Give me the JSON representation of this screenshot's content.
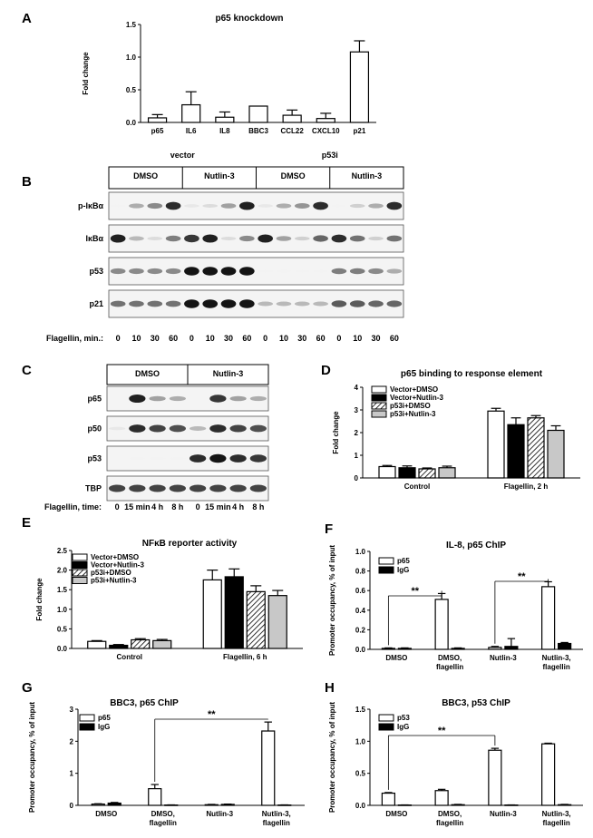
{
  "panels": {
    "A": "A",
    "B": "B",
    "C": "C",
    "D": "D",
    "E": "E",
    "F": "F",
    "G": "G",
    "H": "H"
  },
  "blot_B": {
    "group_labels": [
      "vector",
      "p53i"
    ],
    "treatments": [
      "DMSO",
      "Nutlin-3",
      "DMSO",
      "Nutlin-3"
    ],
    "rows": [
      "p-IκBα",
      "IκBα",
      "p53",
      "p21"
    ],
    "flagellin_label": "Flagellin, min.:",
    "lanes": [
      "0",
      "10",
      "30",
      "60",
      "0",
      "10",
      "30",
      "60",
      "0",
      "10",
      "30",
      "60",
      "0",
      "10",
      "30",
      "60"
    ],
    "intensity": {
      "p-IκBα": [
        0.05,
        0.35,
        0.5,
        0.9,
        0.1,
        0.15,
        0.4,
        0.95,
        0.1,
        0.35,
        0.45,
        0.9,
        0.05,
        0.2,
        0.35,
        0.9
      ],
      "IκBα": [
        0.95,
        0.3,
        0.15,
        0.55,
        0.85,
        0.95,
        0.15,
        0.5,
        0.95,
        0.4,
        0.2,
        0.65,
        0.9,
        0.6,
        0.2,
        0.6
      ],
      "p53": [
        0.5,
        0.5,
        0.5,
        0.5,
        1,
        1,
        1,
        1,
        0.05,
        0.05,
        0.05,
        0.05,
        0.55,
        0.55,
        0.5,
        0.35
      ],
      "p21": [
        0.6,
        0.6,
        0.6,
        0.6,
        1,
        1,
        1,
        1,
        0.3,
        0.3,
        0.3,
        0.3,
        0.7,
        0.7,
        0.65,
        0.65
      ]
    }
  },
  "blot_C": {
    "treatments": [
      "DMSO",
      "Nutlin-3"
    ],
    "rows": [
      "p65",
      "p50",
      "p53",
      "TBP"
    ],
    "flagellin_label": "Flagellin, time:",
    "lanes": [
      "0",
      "15 min",
      "4 h",
      "8 h",
      "0",
      "15 min",
      "4 h",
      "8 h"
    ],
    "intensity": {
      "p65": [
        0.02,
        0.95,
        0.4,
        0.35,
        0.02,
        0.85,
        0.4,
        0.35
      ],
      "p50": [
        0.1,
        0.9,
        0.8,
        0.75,
        0.3,
        0.9,
        0.8,
        0.75
      ],
      "p53": [
        0.02,
        0.05,
        0.05,
        0.05,
        0.9,
        1,
        0.9,
        0.85
      ],
      "TBP": [
        0.8,
        0.8,
        0.8,
        0.8,
        0.8,
        0.8,
        0.8,
        0.8
      ]
    }
  },
  "chart_data": [
    {
      "id": "A",
      "type": "bar",
      "title": "p65 knockdown",
      "ylabel": "Fold change",
      "categories": [
        "p65",
        "IL6",
        "IL8",
        "BBC3",
        "CCL22",
        "CXCL10",
        "p21"
      ],
      "values": [
        0.07,
        0.27,
        0.08,
        0.25,
        0.11,
        0.06,
        1.08
      ],
      "errors": [
        0.05,
        0.2,
        0.08,
        0,
        0.08,
        0.08,
        0.17
      ],
      "ylim": [
        0,
        1.5
      ],
      "yticks": [
        "0.0",
        "0.5",
        "1.0",
        "1.5"
      ]
    },
    {
      "id": "D",
      "type": "bar",
      "title": "p65 binding to response element",
      "ylabel": "Fold change",
      "categories": [
        "Control",
        "Flagellin, 2 h"
      ],
      "series": [
        {
          "name": "Vector+DMSO",
          "values": [
            0.5,
            2.95
          ],
          "errors": [
            0.05,
            0.12
          ]
        },
        {
          "name": "Vector+Nutlin-3",
          "values": [
            0.45,
            2.35
          ],
          "errors": [
            0.08,
            0.3
          ]
        },
        {
          "name": "p53i+DMSO",
          "values": [
            0.4,
            2.65
          ],
          "errors": [
            0.04,
            0.1
          ]
        },
        {
          "name": "p53i+Nutlin-3",
          "values": [
            0.45,
            2.1
          ],
          "errors": [
            0.07,
            0.2
          ]
        }
      ],
      "ylim": [
        0,
        4
      ],
      "yticks": [
        "0",
        "1",
        "2",
        "3",
        "4"
      ]
    },
    {
      "id": "E",
      "type": "bar",
      "title": "NFκB reporter activity",
      "ylabel": "Fold change",
      "categories": [
        "Control",
        "Flagellin, 6 h"
      ],
      "series": [
        {
          "name": "Vector+DMSO",
          "values": [
            0.18,
            1.75
          ],
          "errors": [
            0.02,
            0.25
          ]
        },
        {
          "name": "Vector+Nutlin-3",
          "values": [
            0.08,
            1.83
          ],
          "errors": [
            0.02,
            0.2
          ]
        },
        {
          "name": "p53i+DMSO",
          "values": [
            0.22,
            1.45
          ],
          "errors": [
            0.03,
            0.15
          ]
        },
        {
          "name": "p53i+Nutlin-3",
          "values": [
            0.2,
            1.35
          ],
          "errors": [
            0.03,
            0.13
          ]
        }
      ],
      "ylim": [
        0,
        2.5
      ],
      "yticks": [
        "0.0",
        "0.5",
        "1.0",
        "1.5",
        "2.0",
        "2.5"
      ]
    },
    {
      "id": "F",
      "type": "bar",
      "title": "IL-8, p65 ChIP",
      "ylabel": "Promoter occupancy, % of input",
      "categories": [
        "DMSO",
        "DMSO,\nflagellin",
        "Nutlin-3",
        "Nutlin-3,\nflagellin"
      ],
      "series": [
        {
          "name": "p65",
          "values": [
            0.01,
            0.51,
            0.02,
            0.64
          ],
          "errors": [
            0.005,
            0.06,
            0.01,
            0.05
          ]
        },
        {
          "name": "IgG",
          "values": [
            0.01,
            0.01,
            0.03,
            0.06
          ],
          "errors": [
            0.005,
            0.005,
            0.08,
            0.01
          ]
        }
      ],
      "ylim": [
        0,
        1
      ],
      "yticks": [
        "0.0",
        "0.2",
        "0.4",
        "0.6",
        "0.8",
        "1.0"
      ],
      "significance": [
        "**",
        "**"
      ]
    },
    {
      "id": "G",
      "type": "bar",
      "title": "BBC3, p65 ChIP",
      "ylabel": "Promoter occupancy, % of input",
      "categories": [
        "DMSO",
        "DMSO,\nflagellin",
        "Nutlin-3",
        "Nutlin-3,\nflagellin"
      ],
      "series": [
        {
          "name": "p65",
          "values": [
            0.04,
            0.52,
            0.02,
            2.32
          ],
          "errors": [
            0.01,
            0.13,
            0.01,
            0.28
          ]
        },
        {
          "name": "IgG",
          "values": [
            0.07,
            0.01,
            0.03,
            0.01
          ],
          "errors": [
            0.02,
            0.005,
            0.01,
            0.005
          ]
        }
      ],
      "ylim": [
        0,
        3
      ],
      "yticks": [
        "0",
        "1",
        "2",
        "3"
      ],
      "significance": [
        "**"
      ]
    },
    {
      "id": "H",
      "type": "bar",
      "title": "BBC3, p53 ChIP",
      "ylabel": "Promoter occupancy, % of input",
      "categories": [
        "DMSO",
        "DMSO,\nflagellin",
        "Nutlin-3",
        "Nutlin-3,\nflagellin"
      ],
      "series": [
        {
          "name": "p53",
          "values": [
            0.19,
            0.23,
            0.86,
            0.96
          ],
          "errors": [
            0.01,
            0.02,
            0.03,
            0.01
          ]
        },
        {
          "name": "IgG",
          "values": [
            0.005,
            0.01,
            0.005,
            0.01
          ],
          "errors": [
            0.002,
            0.005,
            0.002,
            0.005
          ]
        }
      ],
      "ylim": [
        0,
        1.5
      ],
      "yticks": [
        "0.0",
        "0.5",
        "1.0",
        "1.5"
      ],
      "significance": [
        "**"
      ]
    }
  ]
}
